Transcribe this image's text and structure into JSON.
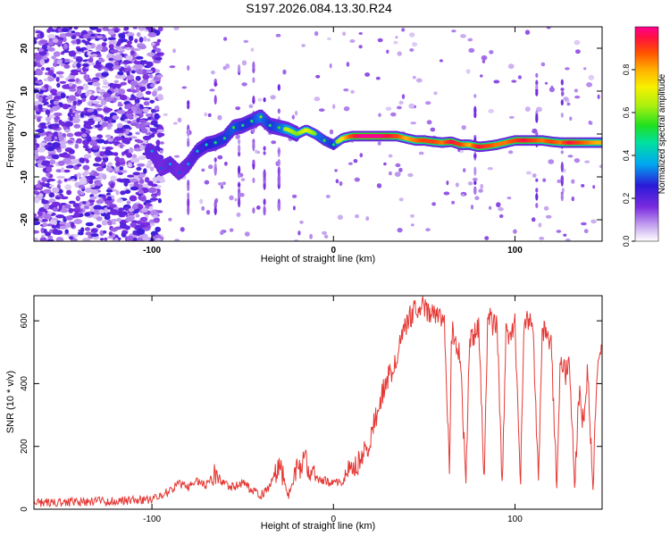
{
  "title": "S197.2026.084.13.30.R24",
  "chart_data": [
    {
      "type": "heatmap",
      "name": "spectrogram",
      "xlabel": "Height of straight line (km)",
      "ylabel": "Frequency (Hz)",
      "xlim": [
        -165,
        148
      ],
      "ylim": [
        -25,
        25
      ],
      "xticks": [
        -100,
        0,
        100
      ],
      "yticks": [
        -20,
        -10,
        0,
        10,
        20
      ],
      "ridge": {
        "height_km": [
          -100,
          -95,
          -90,
          -85,
          -80,
          -75,
          -70,
          -65,
          -60,
          -55,
          -50,
          -45,
          -40,
          -35,
          -30,
          -25,
          -20,
          -15,
          -10,
          -5,
          0,
          5,
          10,
          15,
          20,
          25,
          30,
          35,
          40,
          45,
          50,
          55,
          60,
          65,
          70,
          75,
          80,
          85,
          90,
          95,
          100,
          105,
          110,
          115,
          120,
          125,
          130,
          135,
          140,
          145
        ],
        "frequency_hz": [
          -4,
          -8,
          -7,
          -9,
          -7,
          -4,
          -2.5,
          -2,
          -1,
          1.5,
          2,
          3,
          4,
          2,
          1.5,
          1,
          0,
          1,
          0,
          -1.5,
          -2.5,
          -1,
          -0.5,
          -0.5,
          -0.5,
          -0.5,
          -0.5,
          -0.5,
          -1,
          -1.5,
          -1.5,
          -1.8,
          -2,
          -1.8,
          -2.5,
          -2.5,
          -3,
          -2.8,
          -2.5,
          -2,
          -1.5,
          -1.5,
          -1.5,
          -1.5,
          -1.8,
          -2,
          -2,
          -2,
          -2,
          -2
        ],
        "amplitude": [
          0.35,
          0.3,
          0.35,
          0.3,
          0.35,
          0.4,
          0.45,
          0.5,
          0.5,
          0.55,
          0.5,
          0.5,
          0.6,
          0.5,
          0.55,
          0.65,
          0.6,
          0.7,
          0.6,
          0.55,
          0.5,
          0.75,
          0.9,
          1.0,
          1.0,
          1.0,
          0.95,
          0.9,
          0.8,
          0.85,
          0.9,
          0.9,
          0.85,
          0.95,
          0.9,
          0.8,
          0.95,
          0.9,
          0.85,
          0.85,
          0.9,
          0.95,
          0.9,
          0.85,
          0.9,
          0.85,
          0.95,
          0.9,
          0.85,
          0.8
        ]
      }
    },
    {
      "type": "colorbar",
      "label": "Normalized spectral amplitude",
      "range": [
        0,
        1
      ],
      "ticks": [
        "0.0",
        "0.2",
        "0.4",
        "0.6",
        "0.8"
      ],
      "tick_values": [
        0,
        0.2,
        0.4,
        0.6,
        0.8
      ]
    },
    {
      "type": "line",
      "name": "snr",
      "xlabel": "Height of straight line (km)",
      "ylabel": "SNR (10 * v/v)",
      "xlim": [
        -165,
        148
      ],
      "ylim": [
        0,
        680
      ],
      "xticks": [
        -100,
        0,
        100
      ],
      "yticks": [
        0,
        200,
        400,
        600
      ],
      "color": "#e53935",
      "x": [
        -165,
        -150,
        -130,
        -110,
        -100,
        -95,
        -90,
        -85,
        -80,
        -75,
        -70,
        -65,
        -60,
        -55,
        -50,
        -45,
        -40,
        -35,
        -30,
        -25,
        -20,
        -15,
        -10,
        -5,
        0,
        5,
        10,
        15,
        20,
        25,
        30,
        35,
        40,
        45,
        50,
        55,
        60,
        61,
        64,
        65,
        68,
        70,
        73,
        75,
        78,
        80,
        83,
        85,
        88,
        90,
        93,
        95,
        98,
        100,
        103,
        105,
        108,
        110,
        113,
        115,
        118,
        120,
        123,
        125,
        128,
        130,
        133,
        135,
        138,
        140,
        143,
        145,
        148
      ],
      "y": [
        20,
        22,
        25,
        28,
        30,
        45,
        60,
        80,
        70,
        90,
        75,
        110,
        80,
        70,
        85,
        60,
        45,
        70,
        150,
        40,
        130,
        150,
        100,
        90,
        80,
        90,
        130,
        150,
        220,
        330,
        420,
        480,
        590,
        640,
        640,
        620,
        610,
        640,
        80,
        570,
        520,
        470,
        80,
        550,
        560,
        590,
        80,
        620,
        580,
        600,
        75,
        560,
        550,
        590,
        80,
        610,
        590,
        560,
        70,
        580,
        560,
        520,
        70,
        470,
        430,
        480,
        60,
        380,
        260,
        460,
        50,
        430,
        560
      ]
    }
  ]
}
